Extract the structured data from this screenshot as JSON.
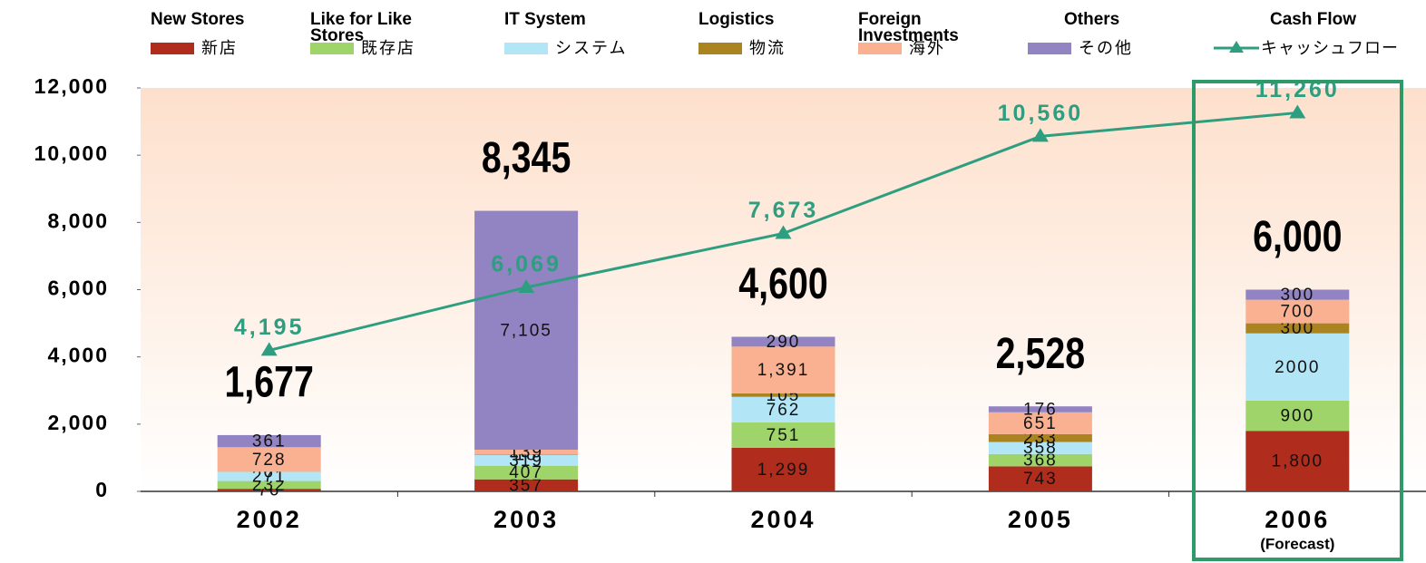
{
  "chart_data": {
    "type": "stacked_bar_line",
    "categories": [
      "2002",
      "2003",
      "2004",
      "2005",
      "2006"
    ],
    "category_notes": [
      null,
      null,
      null,
      null,
      "(Forecast)"
    ],
    "ylim": [
      0,
      12000
    ],
    "yticks": [
      0,
      {
        "value": 2000,
        "label": "2,000"
      },
      {
        "value": 4000,
        "label": "4,000"
      },
      {
        "value": 6000,
        "label": "6,000"
      },
      {
        "value": 8000,
        "label": "8,000"
      },
      {
        "value": 10000,
        "label": "10,000"
      },
      {
        "value": 12000,
        "label": "12,000"
      }
    ],
    "grid": false,
    "series": [
      {
        "name": "新店",
        "name_en": "New Stores",
        "color": "#b02c1c",
        "values": [
          76,
          357,
          1299,
          743,
          1800
        ],
        "value_labels": [
          "76",
          "357",
          "1,299",
          "743",
          "1,800"
        ]
      },
      {
        "name": "既存店",
        "name_en": "Like for Like Stores",
        "color": "#9ed46a",
        "values": [
          232,
          407,
          751,
          368,
          900
        ],
        "value_labels": [
          "232",
          "407",
          "751",
          "368",
          "900"
        ]
      },
      {
        "name": "システム",
        "name_en": "IT System",
        "color": "#b2e6f6",
        "values": [
          271,
          319,
          762,
          358,
          2000
        ],
        "value_labels": [
          "271",
          "319",
          "762",
          "358",
          "2000"
        ]
      },
      {
        "name": "物流",
        "name_en": "Logistics",
        "color": "#aa8420",
        "values": [
          6,
          18,
          105,
          233,
          300
        ],
        "value_labels": [
          "6",
          "18",
          "105",
          "233",
          "300"
        ]
      },
      {
        "name": "海外",
        "name_en": "Foreign Investments",
        "color": "#f9b192",
        "values": [
          728,
          139,
          1391,
          651,
          700
        ],
        "value_labels": [
          "728",
          "139",
          "1,391",
          "651",
          "700"
        ]
      },
      {
        "name": "その他",
        "name_en": "Others",
        "color": "#9283c2",
        "values": [
          361,
          7105,
          290,
          176,
          300
        ],
        "value_labels": [
          "361",
          "7,105",
          "290",
          "176",
          "300"
        ]
      }
    ],
    "totals": {
      "values": [
        1677,
        8345,
        4600,
        2528,
        6000
      ],
      "value_labels": [
        "1,677",
        "8,345",
        "4,600",
        "2,528",
        "6,000"
      ]
    },
    "line": {
      "name": "キャッシュフロー",
      "name_en": "Cash Flow",
      "color": "#2e9e80",
      "values": [
        4195,
        6069,
        7673,
        10560,
        11260
      ],
      "value_labels": [
        "4,195",
        "6,069",
        "7,673",
        "10,560",
        "11,260"
      ]
    }
  }
}
